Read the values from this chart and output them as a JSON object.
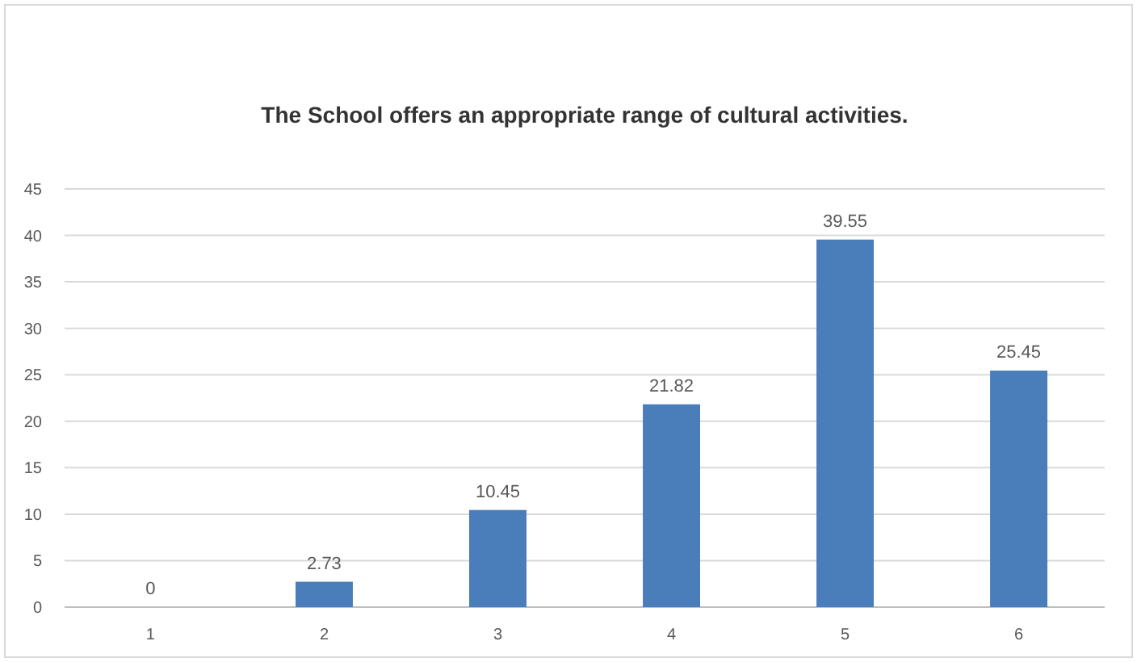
{
  "chart_data": {
    "type": "bar",
    "title": "The School offers an appropriate range of cultural activities.",
    "categories": [
      "1",
      "2",
      "3",
      "4",
      "5",
      "6"
    ],
    "values": [
      0,
      2.73,
      10.45,
      21.82,
      39.55,
      25.45
    ],
    "color": "#4a7ebb",
    "ylim": [
      0,
      45
    ],
    "yticks": [
      0,
      5,
      10,
      15,
      20,
      25,
      30,
      35,
      40,
      45
    ],
    "grid": "y",
    "data_labels": true
  }
}
